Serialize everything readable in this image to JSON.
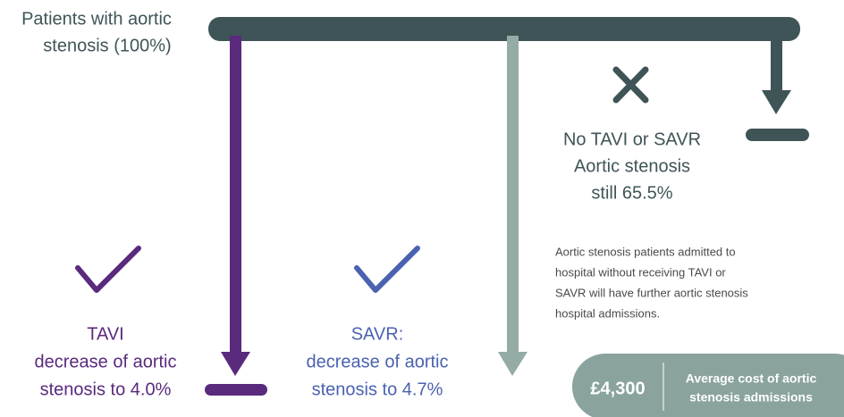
{
  "start": {
    "lines": [
      "Patients with aortic",
      "stenosis (100%)"
    ]
  },
  "no_treatment": {
    "lines": [
      "No TAVI or SAVR",
      "Aortic stenosis",
      "still 65.5%"
    ]
  },
  "note": {
    "lines": [
      "Aortic stenosis patients admitted to",
      "hospital without receiving TAVI or",
      "SAVR will have further aortic stenosis",
      "hospital admissions."
    ]
  },
  "tavi": {
    "lines": [
      "TAVI",
      "decrease of aortic",
      "stenosis to 4.0%"
    ]
  },
  "savr": {
    "lines": [
      "SAVR:",
      "decrease of aortic",
      "stenosis to 4.7%"
    ]
  },
  "cost": {
    "value": "£4,300",
    "lines": [
      "Average cost of aortic",
      "stenosis admissions"
    ]
  }
}
